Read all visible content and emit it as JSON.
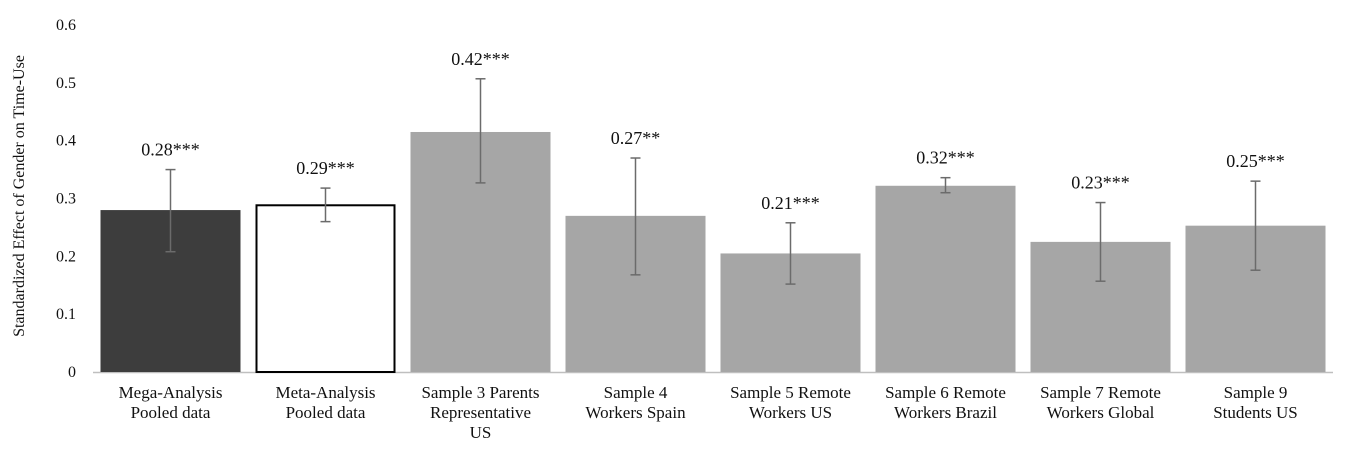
{
  "chart_data": {
    "type": "bar",
    "title": "",
    "xlabel": "",
    "ylabel": "Standardized Effect of Gender on Time-Use",
    "ylim": [
      0,
      0.6
    ],
    "yticks": [
      "0",
      "0.1",
      "0.2",
      "0.3",
      "0.4",
      "0.5",
      "0.6"
    ],
    "grid": false,
    "categories": [
      [
        "Mega-Analysis",
        "Pooled data"
      ],
      [
        "Meta-Analysis",
        "Pooled data"
      ],
      [
        "Sample 3 Parents",
        "Representative",
        "US"
      ],
      [
        "Sample 4",
        "Workers Spain"
      ],
      [
        "Sample 5 Remote",
        "Workers US"
      ],
      [
        "Sample 6 Remote",
        "Workers Brazil"
      ],
      [
        "Sample 7 Remote",
        "Workers Global"
      ],
      [
        "Sample 9",
        "Students US"
      ]
    ],
    "values": [
      0.28,
      0.29,
      0.415,
      0.27,
      0.205,
      0.322,
      0.225,
      0.253
    ],
    "error_low": [
      0.208,
      0.26,
      0.327,
      0.168,
      0.152,
      0.31,
      0.157,
      0.176
    ],
    "error_high": [
      0.35,
      0.318,
      0.507,
      0.37,
      0.258,
      0.336,
      0.293,
      0.33
    ],
    "data_labels": [
      "0.28***",
      "0.29***",
      "0.42***",
      "0.27**",
      "0.21***",
      "0.32***",
      "0.23***",
      "0.25***"
    ],
    "bar_styles": [
      "dark",
      "white",
      "gray",
      "gray",
      "gray",
      "gray",
      "gray",
      "gray"
    ],
    "colors": {
      "dark": "#3d3d3d",
      "white": "#ffffff",
      "gray": "#a6a6a6",
      "outline": "#000000",
      "error_bar": "#6b6b6b",
      "axis": "#bfbfbf"
    }
  }
}
